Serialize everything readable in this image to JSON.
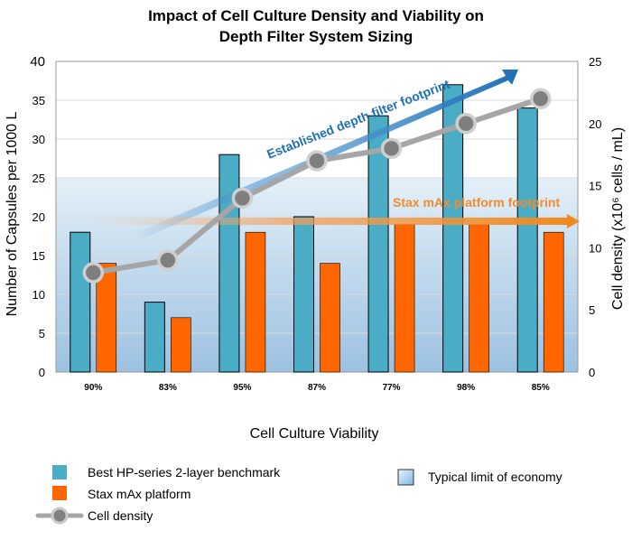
{
  "chart_data": {
    "type": "bar",
    "title": [
      "Impact of Cell Culture Density and Viability on",
      "Depth Filter System Sizing"
    ],
    "xlabel": "Cell Culture Viability",
    "ylabel": "Number of Capsules per 1000 L",
    "y2label": "Cell density (x10⁶ cells / mL)",
    "categories": [
      "90%",
      "83%",
      "95%",
      "87%",
      "77%",
      "98%",
      "85%"
    ],
    "ylim": [
      0,
      40
    ],
    "y_ticks": [
      "0",
      "5",
      "10",
      "15",
      "20",
      "25",
      "30",
      "35",
      "40"
    ],
    "y2lim": [
      0,
      25
    ],
    "y2_ticks": [
      "0",
      "5",
      "10",
      "15",
      "20",
      "25"
    ],
    "grid": true,
    "series": [
      {
        "name": "Best HP-series 2-layer benchmark",
        "type": "bar",
        "axis": "left",
        "color": "#4bacc6",
        "values": [
          18,
          9,
          28,
          20,
          33,
          37,
          34
        ]
      },
      {
        "name": "Stax mAx platform",
        "type": "bar",
        "axis": "left",
        "color": "#ff6600",
        "values": [
          14,
          7,
          18,
          14,
          19,
          19,
          18
        ]
      },
      {
        "name": "Cell density",
        "type": "line",
        "axis": "right",
        "color": "#a6a6a6",
        "values": [
          8,
          9,
          14,
          17,
          18,
          20,
          22
        ]
      }
    ],
    "region": {
      "name": "Typical limit of economy",
      "ymax": 25
    },
    "annotations": [
      {
        "text": "Established depth filter footprint",
        "color": "#1f6fb5"
      },
      {
        "text": "Stax mAx platform footprint",
        "color": "#f28a2e"
      }
    ],
    "legend_position": "bottom"
  }
}
